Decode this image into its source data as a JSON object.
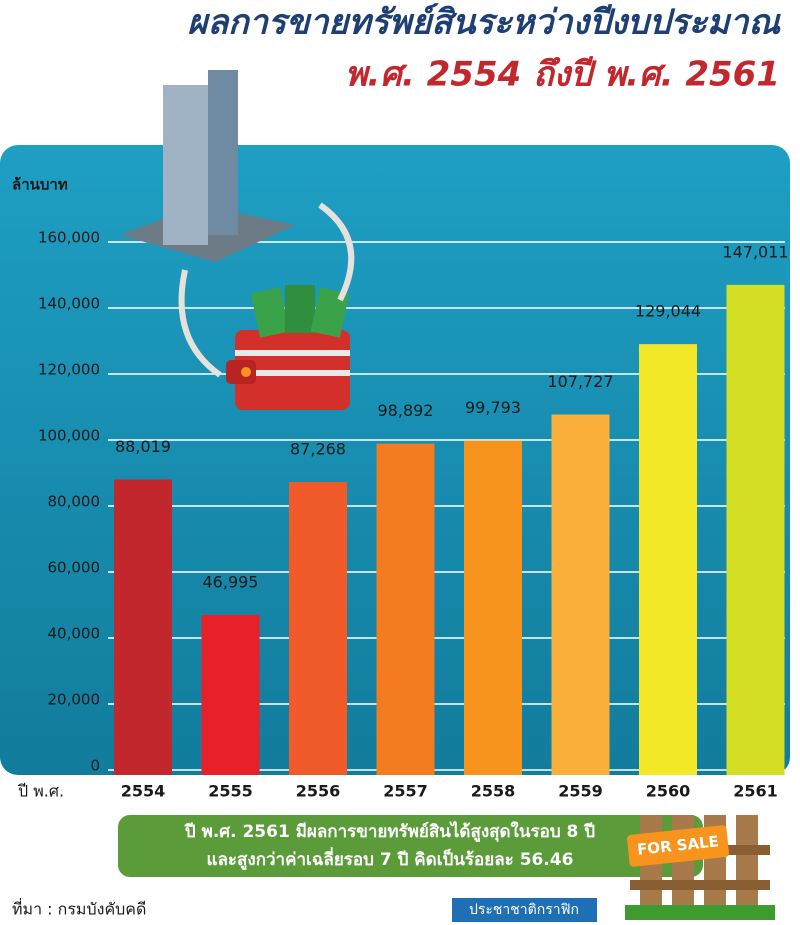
{
  "chart_data": {
    "type": "bar",
    "title": "ผลการขายทรัพย์สินระหว่างปีงบประมาณ",
    "subtitle": "พ.ศ. 2554 ถึงปี พ.ศ. 2561",
    "y_label": "ล้านบาท",
    "x_label": "ปี พ.ศ.",
    "categories": [
      "2554",
      "2555",
      "2556",
      "2557",
      "2558",
      "2559",
      "2560",
      "2561"
    ],
    "values": [
      88019,
      46995,
      87268,
      98892,
      99793,
      107727,
      129044,
      147011
    ],
    "value_labels": [
      "88,019",
      "46,995",
      "87,268",
      "98,892",
      "99,793",
      "107,727",
      "129,044",
      "147,011"
    ],
    "colors": [
      "#c1272d",
      "#e8202a",
      "#f15a29",
      "#f47b20",
      "#f7941d",
      "#fbb03b",
      "#f2e827",
      "#d4de24"
    ],
    "ylim": [
      0,
      160000
    ],
    "yticks": [
      0,
      {
        "value": 20000,
        "label": "20,000"
      },
      {
        "value": 40000,
        "label": "40,000"
      },
      {
        "value": 60000,
        "label": "60,000"
      },
      {
        "value": 80000,
        "label": "80,000"
      },
      {
        "value": 100000,
        "label": "100,000"
      },
      {
        "value": 120000,
        "label": "120,000"
      },
      {
        "value": 140000,
        "label": "140,000"
      },
      {
        "value": 160000,
        "label": "160,000"
      }
    ],
    "grid": true,
    "annotations": [
      "ปี พ.ศ. 2561 มีผลการขายทรัพย์สินได้สูงสุดในรอบ 8 ปี",
      "และสูงกว่าค่าเฉลี่ยรอบ 7 ปี คิดเป็นร้อยละ 56.46"
    ],
    "sign": "FOR SALE",
    "source": "ที่มา : กรมบังคับคดี",
    "credit": "ประชาชาติกราฟิก"
  }
}
